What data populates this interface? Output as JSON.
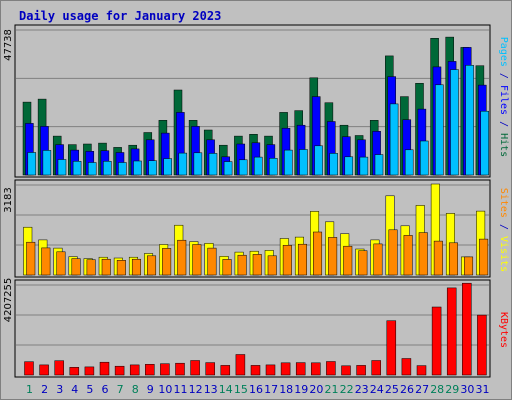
{
  "title": "Daily usage for January 2023",
  "colors": {
    "background": "#c0c0c0",
    "panel": "#c0c0c0",
    "title": "#0000c0",
    "hits": "#006838",
    "files": "#0000ff",
    "pages": "#00c0ff",
    "visits": "#ffff00",
    "sites": "#ff8800",
    "kbytes": "#ff0000",
    "weekend_label": "#00805a",
    "weekday_label": "#0000c0"
  },
  "chart_data": [
    {
      "type": "bar",
      "name": "hits-files-pages",
      "max_label": "47738",
      "ylim": [
        0,
        47738
      ],
      "categories": [
        "1",
        "2",
        "3",
        "4",
        "5",
        "6",
        "7",
        "8",
        "9",
        "10",
        "11",
        "12",
        "13",
        "14",
        "15",
        "16",
        "17",
        "18",
        "19",
        "20",
        "21",
        "22",
        "23",
        "24",
        "25",
        "26",
        "27",
        "28",
        "29",
        "30",
        "31"
      ],
      "series": [
        {
          "name": "Hits",
          "color_key": "hits",
          "values": [
            24000,
            25000,
            12800,
            10000,
            10200,
            10500,
            9100,
            9800,
            14000,
            18000,
            28000,
            18000,
            14800,
            9800,
            12800,
            13400,
            12800,
            20600,
            21200,
            32000,
            23800,
            16400,
            13000,
            18000,
            39200,
            25800,
            30200,
            45000,
            45400,
            42000,
            36000
          ]
        },
        {
          "name": "Files",
          "color_key": "files",
          "values": [
            17000,
            16000,
            10000,
            8200,
            7800,
            8000,
            7400,
            8600,
            11600,
            13800,
            20600,
            16000,
            11600,
            6000,
            10200,
            10600,
            10000,
            15400,
            16400,
            25800,
            17600,
            12600,
            11600,
            14400,
            32400,
            18200,
            21700,
            35600,
            37400,
            42000,
            29600
          ]
        },
        {
          "name": "Pages",
          "color_key": "pages",
          "values": [
            7400,
            8100,
            5100,
            4500,
            4100,
            4500,
            4100,
            4600,
            4700,
            5400,
            7200,
            7300,
            7100,
            4400,
            5000,
            5900,
            5500,
            8200,
            8400,
            9600,
            7100,
            6000,
            5900,
            6700,
            23400,
            8300,
            11200,
            29700,
            34700,
            36100,
            21000
          ]
        }
      ]
    },
    {
      "type": "bar",
      "name": "visits-sites",
      "max_label": "3183",
      "ylim": [
        0,
        3183
      ],
      "categories": [
        "1",
        "2",
        "3",
        "4",
        "5",
        "6",
        "7",
        "8",
        "9",
        "10",
        "11",
        "12",
        "13",
        "14",
        "15",
        "16",
        "17",
        "18",
        "19",
        "20",
        "21",
        "22",
        "23",
        "24",
        "25",
        "26",
        "27",
        "28",
        "29",
        "30",
        "31"
      ],
      "series": [
        {
          "name": "Visits",
          "color_key": "visits",
          "values": [
            1690,
            1240,
            950,
            650,
            580,
            630,
            600,
            630,
            760,
            1080,
            1760,
            1180,
            1120,
            660,
            810,
            840,
            870,
            1290,
            1340,
            2250,
            1880,
            1460,
            920,
            1240,
            2800,
            1740,
            2460,
            3220,
            2180,
            640,
            2260
          ]
        },
        {
          "name": "Sites",
          "color_key": "sites",
          "values": [
            1160,
            960,
            820,
            580,
            540,
            560,
            520,
            560,
            680,
            940,
            1230,
            1080,
            950,
            550,
            700,
            730,
            680,
            1050,
            1090,
            1520,
            1330,
            1020,
            860,
            1100,
            1600,
            1400,
            1500,
            1200,
            1140,
            640,
            1270
          ]
        }
      ]
    },
    {
      "type": "bar",
      "name": "kbytes",
      "max_label": "4207255",
      "ylim": [
        0,
        4207255
      ],
      "categories": [
        "1",
        "2",
        "3",
        "4",
        "5",
        "6",
        "7",
        "8",
        "9",
        "10",
        "11",
        "12",
        "13",
        "14",
        "15",
        "16",
        "17",
        "18",
        "19",
        "20",
        "21",
        "22",
        "23",
        "24",
        "25",
        "26",
        "27",
        "28",
        "29",
        "30",
        "31"
      ],
      "series": [
        {
          "name": "KBytes",
          "color_key": "kbytes",
          "values": [
            620000,
            470000,
            670000,
            360000,
            380000,
            600000,
            410000,
            470000,
            500000,
            530000,
            550000,
            680000,
            580000,
            450000,
            960000,
            450000,
            470000,
            570000,
            580000,
            570000,
            630000,
            430000,
            450000,
            680000,
            2540000,
            770000,
            440000,
            3180000,
            4070000,
            4290000,
            2800000
          ]
        }
      ]
    }
  ],
  "weekend_days": [
    1,
    7,
    8,
    14,
    15,
    21,
    22,
    28,
    29
  ],
  "right_labels": [
    {
      "parts": [
        {
          "text": "Pages",
          "color_key": "pages"
        },
        {
          "text": " / ",
          "color_key": "weekday_label"
        },
        {
          "text": "Files",
          "color_key": "files"
        },
        {
          "text": " / ",
          "color_key": "weekday_label"
        },
        {
          "text": "Hits",
          "color_key": "hits"
        }
      ]
    },
    {
      "parts": [
        {
          "text": "Sites",
          "color_key": "sites"
        },
        {
          "text": " / ",
          "color_key": "weekday_label"
        },
        {
          "text": "Visits",
          "color_key": "visits"
        }
      ]
    },
    {
      "parts": [
        {
          "text": "KBytes",
          "color_key": "kbytes"
        }
      ]
    }
  ]
}
